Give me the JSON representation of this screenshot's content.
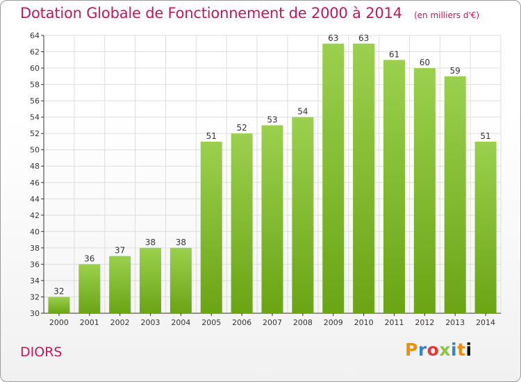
{
  "header": {
    "title": "Dotation Globale de Fonctionnement de 2000 à 2014",
    "subtitle": "(en milliers d'€)"
  },
  "commune": "DIORS",
  "logo": {
    "text": "Proxiti",
    "letters": [
      "P",
      "r",
      "o",
      "x",
      "i",
      "t",
      "i"
    ]
  },
  "colors": {
    "bar_top": "#9bd04e",
    "bar_bottom": "#6aa514",
    "title": "#c2185b",
    "axis": "#333333",
    "grid": "#dddddd"
  },
  "chart_data": {
    "type": "bar",
    "title": "Dotation Globale de Fonctionnement de 2000 à 2014",
    "subtitle": "(en milliers d'€)",
    "xlabel": "",
    "ylabel": "",
    "categories": [
      "2000",
      "2001",
      "2002",
      "2003",
      "2004",
      "2005",
      "2006",
      "2007",
      "2008",
      "2009",
      "2010",
      "2011",
      "2012",
      "2013",
      "2014"
    ],
    "values": [
      32,
      36,
      37,
      38,
      38,
      51,
      52,
      53,
      54,
      63,
      63,
      61,
      60,
      59,
      51
    ],
    "ylim": [
      30,
      64
    ],
    "yticks": [
      30,
      32,
      34,
      36,
      38,
      40,
      42,
      44,
      46,
      48,
      50,
      52,
      54,
      56,
      58,
      60,
      62,
      64
    ],
    "data_labels": true,
    "grid": true,
    "legend": "none"
  }
}
